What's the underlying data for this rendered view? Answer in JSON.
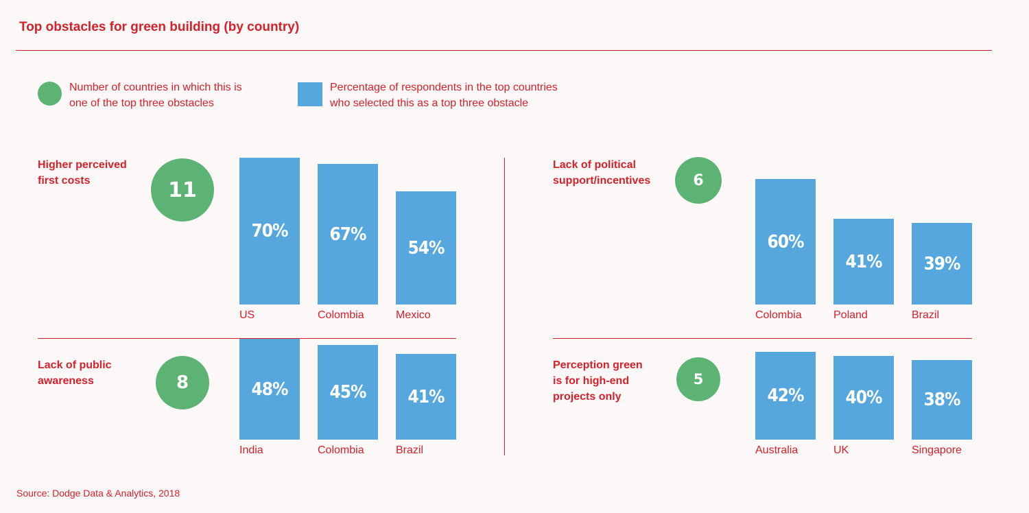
{
  "title": "Top obstacles for green building (by country)",
  "legend": {
    "count_line1": "Number of countries in which this is",
    "count_line2": "one of the top three obstacles",
    "pct_line1": "Percentage of respondents in the top countries",
    "pct_line2": "who selected this as a top three obstacle"
  },
  "source": "Source: Dodge Data & Analytics, 2018",
  "colors": {
    "accent_red": "#d6202a",
    "circle_green": "#5cb373",
    "bar_blue": "#55a7dd"
  },
  "chart_data": [
    {
      "type": "bar",
      "title": "Higher perceived first costs",
      "country_count": 11,
      "categories": [
        "US",
        "Colombia",
        "Mexico"
      ],
      "values": [
        70,
        67,
        54
      ],
      "value_labels": [
        "70%",
        "67%",
        "54%"
      ],
      "ylim": [
        0,
        100
      ]
    },
    {
      "type": "bar",
      "title": "Lack of political support/incentives",
      "country_count": 6,
      "categories": [
        "Colombia",
        "Poland",
        "Brazil"
      ],
      "values": [
        60,
        41,
        39
      ],
      "value_labels": [
        "60%",
        "41%",
        "39%"
      ],
      "ylim": [
        0,
        100
      ]
    },
    {
      "type": "bar",
      "title": "Lack of public awareness",
      "country_count": 8,
      "categories": [
        "India",
        "Colombia",
        "Brazil"
      ],
      "values": [
        48,
        45,
        41
      ],
      "value_labels": [
        "48%",
        "45%",
        "41%"
      ],
      "ylim": [
        0,
        100
      ]
    },
    {
      "type": "bar",
      "title": "Perception green is for high-end projects only",
      "country_count": 5,
      "categories": [
        "Australia",
        "UK",
        "Singapore"
      ],
      "values": [
        42,
        40,
        38
      ],
      "value_labels": [
        "42%",
        "40%",
        "38%"
      ],
      "ylim": [
        0,
        100
      ]
    }
  ],
  "panels": [
    {
      "label_lines": [
        "Higher perceived",
        "first costs"
      ],
      "count_label": "11"
    },
    {
      "label_lines": [
        "Lack of political",
        "support/incentives"
      ],
      "count_label": "6"
    },
    {
      "label_lines": [
        "Lack of public",
        "awareness"
      ],
      "count_label": "8"
    },
    {
      "label_lines": [
        "Perception green",
        "is for high-end",
        "projects only"
      ],
      "count_label": "5"
    }
  ]
}
